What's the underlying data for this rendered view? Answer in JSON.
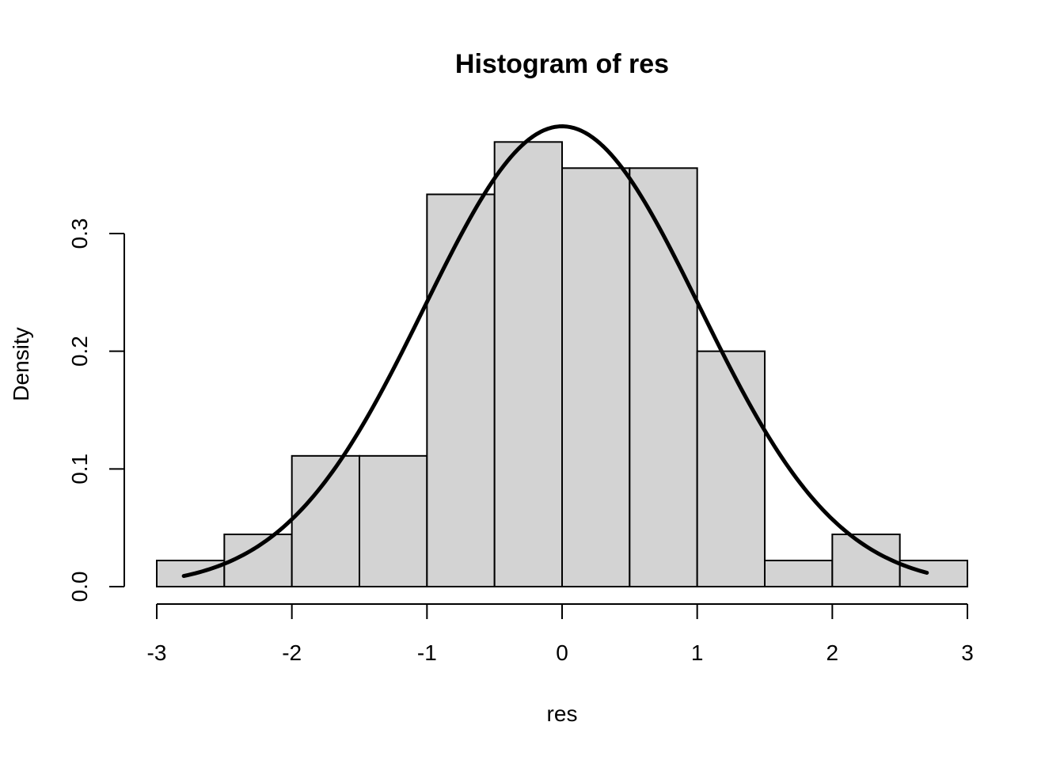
{
  "chart_data": {
    "type": "bar",
    "subtype": "histogram",
    "title": "Histogram of res",
    "xlabel": "res",
    "ylabel": "Density",
    "xlim": [
      -3,
      3
    ],
    "ylim": [
      0,
      0.3
    ],
    "x_ticks": [
      -3,
      -2,
      -1,
      0,
      1,
      2,
      3
    ],
    "x_tick_labels": [
      "-3",
      "-2",
      "-1",
      "0",
      "1",
      "2",
      "3"
    ],
    "y_ticks": [
      0.0,
      0.1,
      0.2,
      0.3
    ],
    "y_tick_labels": [
      "0.0",
      "0.1",
      "0.2",
      "0.3"
    ],
    "grid": false,
    "bins": [
      {
        "from": -3.0,
        "to": -2.5,
        "density": 0.0222
      },
      {
        "from": -2.5,
        "to": -2.0,
        "density": 0.0444
      },
      {
        "from": -2.0,
        "to": -1.5,
        "density": 0.1111
      },
      {
        "from": -1.5,
        "to": -1.0,
        "density": 0.1111
      },
      {
        "from": -1.0,
        "to": -0.5,
        "density": 0.3333
      },
      {
        "from": -0.5,
        "to": 0.0,
        "density": 0.3778
      },
      {
        "from": 0.0,
        "to": 0.5,
        "density": 0.3556
      },
      {
        "from": 0.5,
        "to": 1.0,
        "density": 0.3556
      },
      {
        "from": 1.0,
        "to": 1.5,
        "density": 0.2
      },
      {
        "from": 1.5,
        "to": 2.0,
        "density": 0.0222
      },
      {
        "from": 2.0,
        "to": 2.5,
        "density": 0.0444
      },
      {
        "from": 2.5,
        "to": 3.0,
        "density": 0.0222
      }
    ],
    "overlay_curve": {
      "type": "normal-density",
      "mean": 0.0,
      "sd": 1.02,
      "x_from": -2.8,
      "x_to": 2.7
    },
    "bar_color": "#d3d3d3",
    "curve_color": "#000000"
  }
}
